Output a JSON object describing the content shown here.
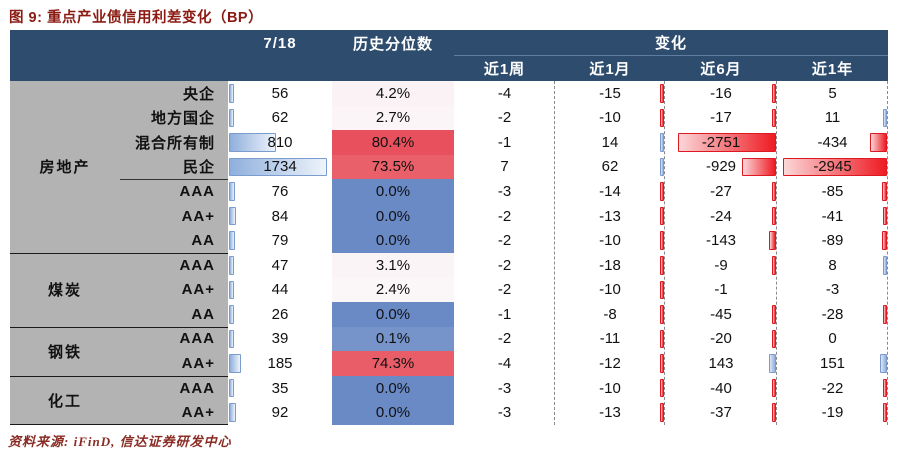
{
  "title": "图 9: 重点产业债信用利差变化（BP）",
  "source_note": "资料来源: iFinD, 信达证券研发中心",
  "colors": {
    "header_bg": "#2e4d6e",
    "title_red": "#8b1a12",
    "group_col_gray": "#b3b3b3",
    "scale_low_blue": "#6a8ac6",
    "scale_mid_white": "#fbf8fa",
    "scale_high_red": "#e7505c",
    "neg_bar_red": "#ee1b23",
    "pos_bar_blue": "#8fafdc"
  },
  "chart_data": {
    "type": "table",
    "title": "重点产业债信用利差变化（BP）",
    "columns": {
      "date": "7/18",
      "pct": "历史分位数"
    },
    "change_header": "变化",
    "change_cols": [
      "近1周",
      "近1月",
      "近6月",
      "近1年"
    ],
    "groups": [
      {
        "label": "房地产",
        "span": 7
      },
      {
        "label": "煤炭",
        "span": 3
      },
      {
        "label": "钢铁",
        "span": 2
      },
      {
        "label": "化工",
        "span": 2
      }
    ],
    "rows": [
      {
        "group": "房地产",
        "sub": "央企",
        "spread": 56,
        "pct": "4.2%",
        "pct_value": 4.2,
        "chg": [
          -4,
          -15,
          -16,
          5
        ]
      },
      {
        "group": "房地产",
        "sub": "地方国企",
        "spread": 62,
        "pct": "2.7%",
        "pct_value": 2.7,
        "chg": [
          -2,
          -10,
          -17,
          11
        ]
      },
      {
        "group": "房地产",
        "sub": "混合所有制",
        "spread": 810,
        "pct": "80.4%",
        "pct_value": 80.4,
        "chg": [
          -1,
          14,
          -2751,
          -434
        ]
      },
      {
        "group": "房地产",
        "sub": "民企",
        "spread": 1734,
        "pct": "73.5%",
        "pct_value": 73.5,
        "chg": [
          7,
          62,
          -929,
          -2945
        ],
        "sub_underline": true
      },
      {
        "group": "房地产",
        "sub": "AAA",
        "spread": 76,
        "pct": "0.0%",
        "pct_value": 0.0,
        "chg": [
          -3,
          -14,
          -27,
          -85
        ]
      },
      {
        "group": "房地产",
        "sub": "AA+",
        "spread": 84,
        "pct": "0.0%",
        "pct_value": 0.0,
        "chg": [
          -2,
          -13,
          -24,
          -41
        ]
      },
      {
        "group": "房地产",
        "sub": "AA",
        "spread": 79,
        "pct": "0.0%",
        "pct_value": 0.0,
        "chg": [
          -2,
          -10,
          -143,
          -89
        ]
      },
      {
        "group": "煤炭",
        "sub": "AAA",
        "spread": 47,
        "pct": "3.1%",
        "pct_value": 3.1,
        "chg": [
          -2,
          -18,
          -9,
          8
        ]
      },
      {
        "group": "煤炭",
        "sub": "AA+",
        "spread": 44,
        "pct": "2.4%",
        "pct_value": 2.4,
        "chg": [
          -2,
          -10,
          -1,
          -3
        ]
      },
      {
        "group": "煤炭",
        "sub": "AA",
        "spread": 26,
        "pct": "0.0%",
        "pct_value": 0.0,
        "chg": [
          -1,
          -8,
          -45,
          -28
        ]
      },
      {
        "group": "钢铁",
        "sub": "AAA",
        "spread": 39,
        "pct": "0.1%",
        "pct_value": 0.1,
        "chg": [
          -2,
          -11,
          -20,
          0
        ]
      },
      {
        "group": "钢铁",
        "sub": "AA+",
        "spread": 185,
        "pct": "74.3%",
        "pct_value": 74.3,
        "chg": [
          -4,
          -12,
          143,
          151
        ]
      },
      {
        "group": "化工",
        "sub": "AAA",
        "spread": 35,
        "pct": "0.0%",
        "pct_value": 0.0,
        "chg": [
          -3,
          -10,
          -40,
          -22
        ]
      },
      {
        "group": "化工",
        "sub": "AA+",
        "spread": 92,
        "pct": "0.0%",
        "pct_value": 0.0,
        "chg": [
          -3,
          -13,
          -37,
          -19
        ]
      }
    ],
    "scales": {
      "spread_bar_max": 1734,
      "pct_color_scale": {
        "min": 0,
        "mid": 1.25,
        "max": 80.4
      },
      "change_bar_min": -2945,
      "change_bar_max": 151
    },
    "layout_hints": {
      "change_bars": "negative values red bars anchored right edge, positive blue ticks",
      "pct_column": "blue-white-red 3-color scale",
      "date_column": "blue data bars anchored left"
    }
  }
}
